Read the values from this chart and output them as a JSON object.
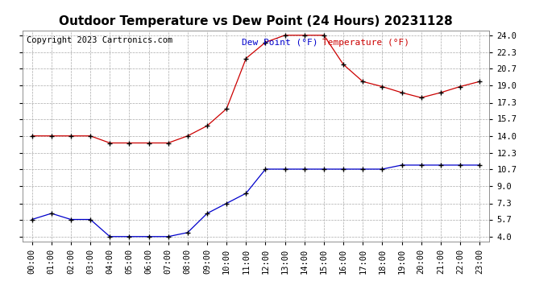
{
  "title": "Outdoor Temperature vs Dew Point (24 Hours) 20231128",
  "copyright": "Copyright 2023 Cartronics.com",
  "legend_dew": "Dew Point (°F)",
  "legend_temp": "Temperature (°F)",
  "hours": [
    "00:00",
    "01:00",
    "02:00",
    "03:00",
    "04:00",
    "05:00",
    "06:00",
    "07:00",
    "08:00",
    "09:00",
    "10:00",
    "11:00",
    "12:00",
    "13:00",
    "14:00",
    "15:00",
    "16:00",
    "17:00",
    "18:00",
    "19:00",
    "20:00",
    "21:00",
    "22:00",
    "23:00"
  ],
  "temperature": [
    14.0,
    14.0,
    14.0,
    14.0,
    13.3,
    13.3,
    13.3,
    13.3,
    14.0,
    15.0,
    16.7,
    21.7,
    23.3,
    24.0,
    24.0,
    24.0,
    21.1,
    19.4,
    18.9,
    18.3,
    17.8,
    18.3,
    18.9,
    19.4
  ],
  "dew_point": [
    5.7,
    6.3,
    5.7,
    5.7,
    4.0,
    4.0,
    4.0,
    4.0,
    4.4,
    6.3,
    7.3,
    8.3,
    10.7,
    10.7,
    10.7,
    10.7,
    10.7,
    10.7,
    10.7,
    11.1,
    11.1,
    11.1,
    11.1,
    11.1
  ],
  "ylim_min": 4.0,
  "ylim_max": 24.0,
  "yticks": [
    4.0,
    5.7,
    7.3,
    9.0,
    10.7,
    12.3,
    14.0,
    15.7,
    17.3,
    19.0,
    20.7,
    22.3,
    24.0
  ],
  "temp_color": "#cc0000",
  "dew_color": "#0000cc",
  "bg_color": "#ffffff",
  "grid_color": "#aaaaaa",
  "title_fontsize": 11,
  "label_fontsize": 8,
  "tick_fontsize": 7.5,
  "copyright_fontsize": 7.5
}
